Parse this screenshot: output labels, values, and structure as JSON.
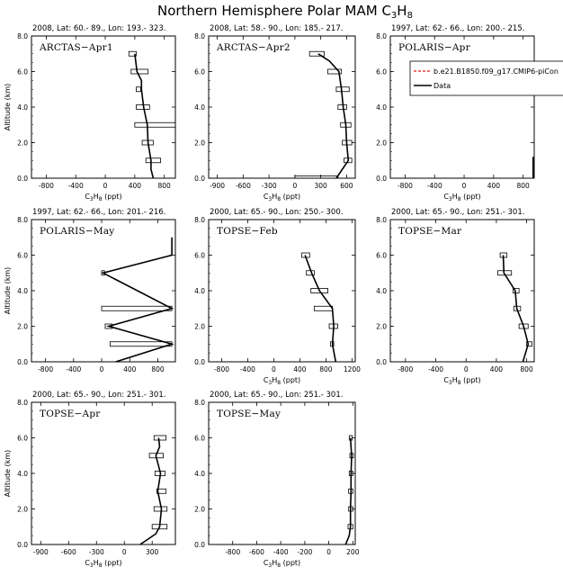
{
  "figure": {
    "title_main": "Northern Hemisphere Polar MAM C",
    "title_sub": "3",
    "title_main2": "H",
    "title_sub2": "8",
    "legend": {
      "model_label": "b.e21.B1850.f09_g17.CMIP6-piCon",
      "data_label": "Data",
      "model_color": "#e8170f",
      "data_color": "#000000"
    }
  },
  "chart_data": [
    {
      "type": "line",
      "panel_label": "ARCTAS−Apr1",
      "subtitle": "2008, Lat:  60.- 89., Lon: 193.- 323.",
      "xlabel": "C3H8 (ppt)",
      "ylabel": "Altitude (km)",
      "xlim": [
        -1000,
        950
      ],
      "xticks": [
        -800,
        -400,
        0,
        400,
        800
      ],
      "ylim": [
        0,
        8
      ],
      "yticks": [
        0.0,
        2.0,
        4.0,
        6.0,
        8.0
      ],
      "series": [
        {
          "x": [
            650,
            620,
            620,
            580,
            570,
            520,
            490,
            490,
            430,
            400
          ],
          "y": [
            0,
            0.5,
            1.0,
            2.0,
            3.0,
            4.0,
            5.0,
            5.5,
            6.0,
            7.0
          ]
        }
      ],
      "boxes": [
        {
          "y": 1.0,
          "x1": 550,
          "x2": 750
        },
        {
          "y": 2.0,
          "x1": 500,
          "x2": 650
        },
        {
          "y": 3.0,
          "x1": 400,
          "x2": 950
        },
        {
          "y": 4.0,
          "x1": 420,
          "x2": 600
        },
        {
          "y": 5.0,
          "x1": 420,
          "x2": 480
        },
        {
          "y": 6.0,
          "x1": 350,
          "x2": 580
        },
        {
          "y": 7.0,
          "x1": 320,
          "x2": 420
        }
      ]
    },
    {
      "type": "line",
      "panel_label": "ARCTAS−Apr2",
      "subtitle": "2008, Lat:  58.- 90., Lon: 185.- 217.",
      "xlabel": "C3H8 (ppt)",
      "ylabel": "",
      "xlim": [
        -1000,
        700
      ],
      "xticks": [
        -900,
        -600,
        -300,
        0,
        300,
        600
      ],
      "ylim": [
        0,
        8
      ],
      "yticks": [
        0.0,
        2.0,
        4.0,
        6.0,
        8.0
      ],
      "series": [
        {
          "x": [
            480,
            620,
            600,
            590,
            560,
            540,
            510,
            400,
            270
          ],
          "y": [
            0,
            1.0,
            2.0,
            3.0,
            4.0,
            5.0,
            6.0,
            6.6,
            7.0
          ]
        }
      ],
      "boxes": [
        {
          "y": 0.0,
          "x1": 0,
          "x2": 500
        },
        {
          "y": 1.0,
          "x1": 570,
          "x2": 660
        },
        {
          "y": 2.0,
          "x1": 550,
          "x2": 660
        },
        {
          "y": 3.0,
          "x1": 530,
          "x2": 650
        },
        {
          "y": 4.0,
          "x1": 500,
          "x2": 600
        },
        {
          "y": 5.0,
          "x1": 480,
          "x2": 630
        },
        {
          "y": 6.0,
          "x1": 380,
          "x2": 540
        },
        {
          "y": 7.0,
          "x1": 170,
          "x2": 340
        }
      ]
    },
    {
      "type": "line",
      "panel_label": "POLARIS−Apr",
      "subtitle": "1997, Lat: 62.- 66., Lon: 200.- 215.",
      "xlabel": "C3H8 (ppt)",
      "ylabel": "",
      "xlim": [
        -1000,
        950
      ],
      "xticks": [
        -800,
        -400,
        0,
        400,
        800
      ],
      "ylim": [
        0,
        8
      ],
      "yticks": [
        0.0,
        2.0,
        4.0,
        6.0,
        8.0
      ],
      "series": [
        {
          "x": [
            935,
            935
          ],
          "y": [
            0,
            1.2
          ]
        }
      ],
      "boxes": [],
      "legend": true
    },
    {
      "type": "line",
      "panel_label": "POLARIS−May",
      "subtitle": "1997, Lat: 62.- 66., Lon: 201.- 216.",
      "xlabel": "",
      "ylabel": "Altitude (km)",
      "xlim": [
        -1000,
        1050
      ],
      "xticks": [
        -800,
        -400,
        0,
        400,
        800
      ],
      "ylim": [
        0,
        8
      ],
      "yticks": [
        0.0,
        2.0,
        4.0,
        6.0,
        8.0
      ],
      "series": [
        {
          "x": [
            200,
            1000,
            100,
            1000,
            20,
            1000,
            1000,
            1000
          ],
          "y": [
            0,
            1.0,
            2.0,
            3.0,
            5.0,
            6.0,
            7.0,
            6.0
          ]
        }
      ],
      "boxes": [
        {
          "y": 1.0,
          "x1": 120,
          "x2": 1000
        },
        {
          "y": 2.0,
          "x1": 50,
          "x2": 150
        },
        {
          "y": 3.0,
          "x1": 0,
          "x2": 1000
        },
        {
          "y": 5.0,
          "x1": 0,
          "x2": 40
        }
      ]
    },
    {
      "type": "line",
      "panel_label": "TOPSE−Feb",
      "subtitle": "2000, Lat: 65.- 90., Lon: 250.- 300.",
      "xlabel": "C3H8 (ppt)",
      "ylabel": "",
      "xlim": [
        -1000,
        1250
      ],
      "xticks": [
        -800,
        -400,
        0,
        400,
        800,
        1200
      ],
      "ylim": [
        0,
        8
      ],
      "yticks": [
        0.0,
        2.0,
        4.0,
        6.0,
        8.0
      ],
      "series": [
        {
          "x": [
            950,
            900,
            920,
            900,
            700,
            580,
            480
          ],
          "y": [
            0,
            1.0,
            2.0,
            3.0,
            4.0,
            5.0,
            6.0
          ]
        }
      ],
      "boxes": [
        {
          "y": 1.0,
          "x1": 870,
          "x2": 920
        },
        {
          "y": 2.0,
          "x1": 850,
          "x2": 980
        },
        {
          "y": 3.0,
          "x1": 620,
          "x2": 900
        },
        {
          "y": 4.0,
          "x1": 570,
          "x2": 830
        },
        {
          "y": 5.0,
          "x1": 500,
          "x2": 620
        },
        {
          "y": 6.0,
          "x1": 430,
          "x2": 550
        }
      ]
    },
    {
      "type": "line",
      "panel_label": "TOPSE−Mar",
      "subtitle": "2000, Lat: 65.- 90., Lon: 251.- 301.",
      "xlabel": "C3H8 (ppt)",
      "ylabel": "",
      "xlim": [
        -1000,
        900
      ],
      "xticks": [
        -800,
        -400,
        0,
        400,
        800
      ],
      "ylim": [
        0,
        8
      ],
      "yticks": [
        0.0,
        2.0,
        4.0,
        6.0,
        8.0
      ],
      "series": [
        {
          "x": [
            750,
            820,
            760,
            670,
            650,
            500,
            490
          ],
          "y": [
            0,
            1.0,
            2.0,
            3.0,
            4.0,
            5.0,
            6.0
          ]
        }
      ],
      "boxes": [
        {
          "y": 1.0,
          "x1": 800,
          "x2": 870
        },
        {
          "y": 2.0,
          "x1": 700,
          "x2": 820
        },
        {
          "y": 3.0,
          "x1": 630,
          "x2": 720
        },
        {
          "y": 4.0,
          "x1": 620,
          "x2": 700
        },
        {
          "y": 5.0,
          "x1": 420,
          "x2": 600
        },
        {
          "y": 6.0,
          "x1": 450,
          "x2": 540
        }
      ]
    },
    {
      "type": "line",
      "panel_label": "TOPSE−Apr",
      "subtitle": "2000, Lat: 65.- 90., Lon: 251.- 301.",
      "xlabel": "C3H8 (ppt)",
      "ylabel": "Altitude (km)",
      "xlim": [
        -1000,
        550
      ],
      "xticks": [
        -900,
        -600,
        -300,
        0,
        300
      ],
      "ylim": [
        0,
        8
      ],
      "yticks": [
        0.0,
        2.0,
        4.0,
        6.0,
        8.0
      ],
      "series": [
        {
          "x": [
            170,
            340,
            380,
            400,
            360,
            390,
            340,
            380,
            370
          ],
          "y": [
            0,
            0.6,
            1.0,
            2.0,
            3.0,
            4.0,
            5.0,
            5.5,
            6.0
          ]
        }
      ],
      "boxes": [
        {
          "y": 1.0,
          "x1": 300,
          "x2": 460
        },
        {
          "y": 2.0,
          "x1": 320,
          "x2": 460
        },
        {
          "y": 3.0,
          "x1": 350,
          "x2": 450
        },
        {
          "y": 4.0,
          "x1": 330,
          "x2": 440
        },
        {
          "y": 5.0,
          "x1": 270,
          "x2": 420
        },
        {
          "y": 6.0,
          "x1": 320,
          "x2": 450
        }
      ]
    },
    {
      "type": "line",
      "panel_label": "TOPSE−May",
      "subtitle": "2000, Lat: 65.- 90., Lon: 251.- 301.",
      "xlabel": "C3H8 (ppt)",
      "ylabel": "",
      "xlim": [
        -1000,
        220
      ],
      "xticks": [
        -800,
        -600,
        -400,
        -200,
        0,
        200
      ],
      "ylim": [
        0,
        8
      ],
      "yticks": [
        0.0,
        2.0,
        4.0,
        6.0,
        8.0
      ],
      "series": [
        {
          "x": [
            140,
            170,
            180,
            180,
            185,
            185,
            190,
            185,
            180
          ],
          "y": [
            0,
            0.5,
            1.0,
            2.0,
            3.0,
            4.0,
            5.0,
            5.5,
            6.0
          ]
        }
      ],
      "boxes": [
        {
          "y": 1.0,
          "x1": 160,
          "x2": 200
        },
        {
          "y": 2.0,
          "x1": 165,
          "x2": 200
        },
        {
          "y": 3.0,
          "x1": 165,
          "x2": 200
        },
        {
          "y": 4.0,
          "x1": 170,
          "x2": 200
        },
        {
          "y": 5.0,
          "x1": 175,
          "x2": 205
        },
        {
          "y": 6.0,
          "x1": 170,
          "x2": 195
        }
      ]
    }
  ]
}
